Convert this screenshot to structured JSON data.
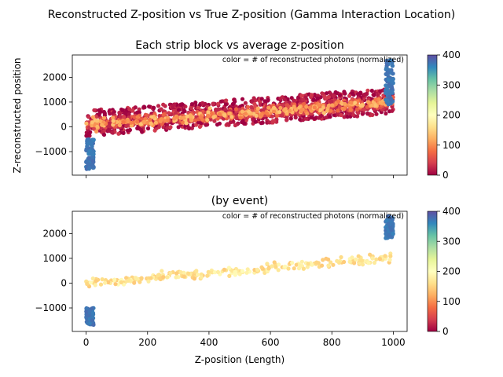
{
  "figure": {
    "suptitle": "Reconstructed Z-position vs True Z-position (Gamma Interaction Location)",
    "xlabel": "Z-position (Length)",
    "ylabel": "Z-reconstructed position"
  },
  "chart_data": [
    {
      "type": "scatter",
      "title": "Each strip block vs average z-position",
      "annotation": "color = # of reconstructed photons (normalized)",
      "xlabel": "",
      "ylabel": "Z-reconstructed position",
      "xlim": [
        -45,
        1045
      ],
      "ylim": [
        -1950,
        2900
      ],
      "xticks": [
        0,
        200,
        400,
        600,
        800,
        1000
      ],
      "xtick_labels": [
        "",
        "",
        "",
        "",
        "",
        ""
      ],
      "yticks": [
        -1000,
        0,
        1000,
        2000
      ],
      "ytick_labels": [
        "−1000",
        "0",
        "1000",
        "2000"
      ],
      "colormap": "Spectral",
      "colorbar": {
        "range": [
          0,
          400
        ],
        "ticks": [
          0,
          100,
          200,
          300,
          400
        ],
        "tick_labels": [
          "0",
          "100",
          "200",
          "300",
          "400"
        ]
      },
      "series": [
        {
          "kind": "band",
          "x_range": [
            0,
            1000
          ],
          "center_at_x_start": 150,
          "center_at_x_end": 1050,
          "spread": 700,
          "color_level": 0.03
        },
        {
          "kind": "band",
          "x_range": [
            0,
            1000
          ],
          "center_at_x_start": 100,
          "center_at_x_end": 1000,
          "spread": 300,
          "color_level": 0.12
        },
        {
          "kind": "trend",
          "x_range": [
            0,
            1000
          ],
          "center_at_x_start": 80,
          "center_at_x_end": 1000,
          "spread": 90,
          "color_level": 0.28
        },
        {
          "kind": "cluster",
          "x_range": [
            0,
            25
          ],
          "y_range": [
            -1700,
            -500
          ],
          "color_level": 0.93
        },
        {
          "kind": "cluster",
          "x_range": [
            975,
            1000
          ],
          "y_range": [
            900,
            2700
          ],
          "color_level": 0.93
        }
      ]
    },
    {
      "type": "scatter",
      "title": "(by event)",
      "annotation": "color = # of reconstructed photons (normalized)",
      "xlabel": "Z-position (Length)",
      "ylabel": "",
      "xlim": [
        -45,
        1045
      ],
      "ylim": [
        -1950,
        2900
      ],
      "xticks": [
        0,
        200,
        400,
        600,
        800,
        1000
      ],
      "xtick_labels": [
        "0",
        "200",
        "400",
        "600",
        "800",
        "1000"
      ],
      "yticks": [
        -1000,
        0,
        1000,
        2000
      ],
      "ytick_labels": [
        "−1000",
        "0",
        "1000",
        "2000"
      ],
      "colormap": "Spectral",
      "colorbar": {
        "range": [
          0,
          400
        ],
        "ticks": [
          0,
          100,
          200,
          300,
          400
        ],
        "tick_labels": [
          "0",
          "100",
          "200",
          "300",
          "400"
        ]
      },
      "series": [
        {
          "kind": "trend",
          "x_range": [
            0,
            1000
          ],
          "center_at_x_start": 0,
          "center_at_x_end": 1000,
          "spread": 90,
          "color_level": 0.42
        },
        {
          "kind": "cluster",
          "x_range": [
            0,
            25
          ],
          "y_range": [
            -1700,
            -1000
          ],
          "color_level": 0.93
        },
        {
          "kind": "cluster",
          "x_range": [
            975,
            1000
          ],
          "y_range": [
            1800,
            2700
          ],
          "color_level": 0.93
        }
      ]
    }
  ]
}
